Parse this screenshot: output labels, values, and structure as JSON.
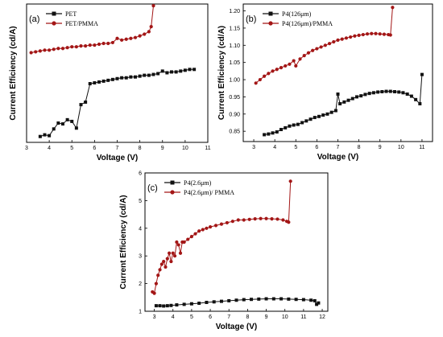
{
  "colors": {
    "black_series": "#111111",
    "red_series": "#a31616"
  },
  "chart_data": [
    {
      "type": "line",
      "panel_label": "(a)",
      "xlabel": "Voltage (V)",
      "ylabel": "Current Efficiency (cd/A)",
      "xlim": [
        3,
        11
      ],
      "ylim": [
        0,
        1.65
      ],
      "xticks": [
        3,
        4,
        5,
        6,
        7,
        8,
        9,
        10,
        11
      ],
      "yticks": [],
      "legend_position": "top-left",
      "series": [
        {
          "name": "PET",
          "color": "#111111",
          "marker": "square",
          "x": [
            3.6,
            3.8,
            4.0,
            4.2,
            4.4,
            4.6,
            4.8,
            5.0,
            5.2,
            5.4,
            5.6,
            5.8,
            6.0,
            6.2,
            6.4,
            6.6,
            6.8,
            7.0,
            7.2,
            7.4,
            7.6,
            7.8,
            8.0,
            8.2,
            8.4,
            8.6,
            8.8,
            9.0,
            9.2,
            9.4,
            9.6,
            9.8,
            10.0,
            10.2,
            10.4
          ],
          "y": [
            0.07,
            0.09,
            0.08,
            0.16,
            0.23,
            0.22,
            0.27,
            0.25,
            0.17,
            0.45,
            0.48,
            0.7,
            0.71,
            0.72,
            0.73,
            0.74,
            0.75,
            0.76,
            0.77,
            0.77,
            0.78,
            0.78,
            0.79,
            0.8,
            0.8,
            0.81,
            0.82,
            0.85,
            0.83,
            0.84,
            0.84,
            0.85,
            0.86,
            0.87,
            0.87
          ]
        },
        {
          "name": "PET/PMMA",
          "color": "#a31616",
          "marker": "circle",
          "x": [
            3.2,
            3.4,
            3.6,
            3.8,
            4.0,
            4.2,
            4.4,
            4.6,
            4.8,
            5.0,
            5.2,
            5.4,
            5.6,
            5.8,
            6.0,
            6.2,
            6.4,
            6.6,
            6.8,
            7.0,
            7.2,
            7.4,
            7.6,
            7.8,
            8.0,
            8.2,
            8.4,
            8.5,
            8.6
          ],
          "y": [
            1.07,
            1.08,
            1.09,
            1.1,
            1.1,
            1.11,
            1.12,
            1.12,
            1.13,
            1.14,
            1.14,
            1.15,
            1.15,
            1.16,
            1.16,
            1.17,
            1.18,
            1.18,
            1.19,
            1.24,
            1.22,
            1.23,
            1.24,
            1.25,
            1.27,
            1.29,
            1.32,
            1.38,
            1.63
          ]
        }
      ]
    },
    {
      "type": "line",
      "panel_label": "(b)",
      "xlabel": "Voltage (V)",
      "ylabel": "Current Efficiency (cd/A)",
      "xlim": [
        2.5,
        11.5
      ],
      "ylim": [
        0.82,
        1.22
      ],
      "xticks": [
        3,
        4,
        5,
        6,
        7,
        8,
        9,
        10,
        11
      ],
      "yticks": [
        0.85,
        0.9,
        0.95,
        1.0,
        1.05,
        1.1,
        1.15,
        1.2
      ],
      "ytick_labels": [
        "0.85",
        "0.90",
        "0.95",
        "1.00",
        "1.05",
        "1.10",
        "1.15",
        "1.20"
      ],
      "legend_position": "top-left",
      "series": [
        {
          "name": "P4(126μm)",
          "color": "#111111",
          "marker": "square",
          "x": [
            3.5,
            3.7,
            3.9,
            4.1,
            4.3,
            4.5,
            4.7,
            4.9,
            5.1,
            5.3,
            5.5,
            5.7,
            5.9,
            6.1,
            6.3,
            6.5,
            6.7,
            6.9,
            7.0,
            7.1,
            7.3,
            7.5,
            7.7,
            7.9,
            8.1,
            8.3,
            8.5,
            8.7,
            8.9,
            9.1,
            9.3,
            9.5,
            9.7,
            9.9,
            10.1,
            10.3,
            10.5,
            10.7,
            10.9,
            11.0
          ],
          "y": [
            0.84,
            0.842,
            0.845,
            0.848,
            0.855,
            0.86,
            0.865,
            0.868,
            0.87,
            0.875,
            0.88,
            0.885,
            0.89,
            0.893,
            0.897,
            0.9,
            0.905,
            0.91,
            0.958,
            0.93,
            0.935,
            0.94,
            0.945,
            0.95,
            0.953,
            0.957,
            0.96,
            0.962,
            0.964,
            0.965,
            0.966,
            0.966,
            0.965,
            0.964,
            0.962,
            0.958,
            0.952,
            0.942,
            0.93,
            1.015
          ]
        },
        {
          "name": "P4(126μm)/PMMA",
          "color": "#a31616",
          "marker": "circle",
          "x": [
            3.1,
            3.3,
            3.5,
            3.7,
            3.9,
            4.1,
            4.3,
            4.5,
            4.7,
            4.9,
            5.0,
            5.2,
            5.4,
            5.6,
            5.8,
            6.0,
            6.2,
            6.4,
            6.6,
            6.8,
            7.0,
            7.2,
            7.4,
            7.6,
            7.8,
            8.0,
            8.2,
            8.4,
            8.6,
            8.8,
            9.0,
            9.2,
            9.4,
            9.5,
            9.6
          ],
          "y": [
            0.99,
            1.0,
            1.01,
            1.018,
            1.025,
            1.03,
            1.035,
            1.04,
            1.045,
            1.055,
            1.04,
            1.06,
            1.07,
            1.078,
            1.085,
            1.09,
            1.095,
            1.1,
            1.105,
            1.11,
            1.115,
            1.118,
            1.121,
            1.124,
            1.127,
            1.129,
            1.131,
            1.133,
            1.134,
            1.134,
            1.133,
            1.132,
            1.131,
            1.13,
            1.21
          ]
        }
      ]
    },
    {
      "type": "line",
      "panel_label": "(c)",
      "xlabel": "Voltage (V)",
      "ylabel": "Current Efficiency (cd/A)",
      "xlim": [
        2.5,
        12.3
      ],
      "ylim": [
        1,
        6
      ],
      "xticks": [
        3,
        4,
        5,
        6,
        7,
        8,
        9,
        10,
        11,
        12
      ],
      "yticks": [
        1,
        2,
        3,
        4,
        5,
        6
      ],
      "legend_position": "top-left",
      "series": [
        {
          "name": "P4(2.6μm)",
          "color": "#111111",
          "marker": "square",
          "x": [
            3.1,
            3.3,
            3.5,
            3.7,
            3.9,
            4.2,
            4.6,
            5.0,
            5.4,
            5.8,
            6.2,
            6.6,
            7.0,
            7.4,
            7.8,
            8.2,
            8.6,
            9.0,
            9.4,
            9.8,
            10.2,
            10.6,
            11.0,
            11.4,
            11.6,
            11.7,
            11.8
          ],
          "y": [
            1.2,
            1.2,
            1.19,
            1.2,
            1.21,
            1.23,
            1.25,
            1.27,
            1.29,
            1.32,
            1.34,
            1.36,
            1.38,
            1.4,
            1.42,
            1.43,
            1.44,
            1.45,
            1.45,
            1.45,
            1.44,
            1.43,
            1.42,
            1.4,
            1.38,
            1.25,
            1.3
          ]
        },
        {
          "name": "P4(2.6μm)/ PMMA",
          "color": "#a31616",
          "marker": "circle",
          "x": [
            2.9,
            3.0,
            3.1,
            3.2,
            3.3,
            3.4,
            3.5,
            3.6,
            3.7,
            3.8,
            3.9,
            4.0,
            4.1,
            4.2,
            4.3,
            4.4,
            4.5,
            4.6,
            4.8,
            5.0,
            5.2,
            5.4,
            5.6,
            5.8,
            6.0,
            6.3,
            6.6,
            6.9,
            7.2,
            7.5,
            7.8,
            8.1,
            8.4,
            8.7,
            9.0,
            9.3,
            9.6,
            9.9,
            10.1,
            10.2,
            10.3
          ],
          "y": [
            1.7,
            1.65,
            2.0,
            2.3,
            2.5,
            2.7,
            2.8,
            2.6,
            2.9,
            3.1,
            2.8,
            3.1,
            3.0,
            3.5,
            3.4,
            3.1,
            3.5,
            3.5,
            3.6,
            3.7,
            3.8,
            3.9,
            3.95,
            4.0,
            4.05,
            4.1,
            4.15,
            4.2,
            4.25,
            4.3,
            4.3,
            4.32,
            4.34,
            4.35,
            4.35,
            4.34,
            4.33,
            4.3,
            4.25,
            4.22,
            5.7
          ]
        }
      ]
    }
  ]
}
